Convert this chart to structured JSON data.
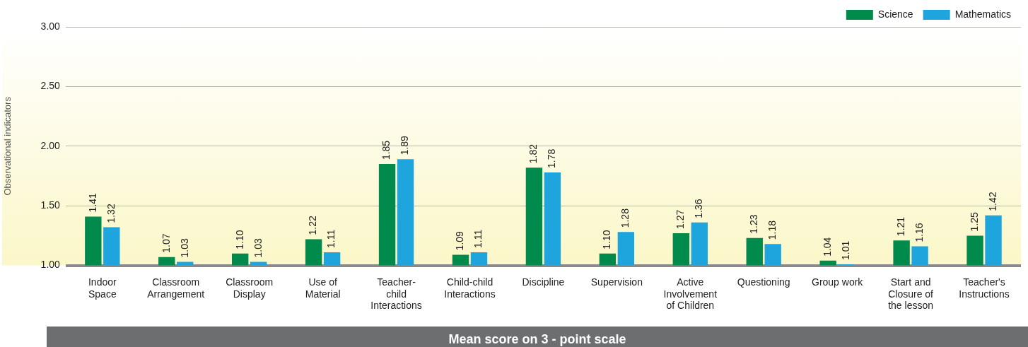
{
  "chart_data": {
    "type": "bar",
    "xlabel": "Mean score on 3 - point scale",
    "ylabel": "Observational indicators",
    "categories": [
      "Indoor Space",
      "Classroom Arrangement",
      "Classroom Display",
      "Use of Material",
      "Teacher-child Interactions",
      "Child-child Interactions",
      "Discipline",
      "Supervision",
      "Active Involvement of Children",
      "Questioning",
      "Group work",
      "Start and Closure of the lesson",
      "Teacher's Instructions"
    ],
    "series": [
      {
        "name": "Science",
        "color": "#008a4b",
        "values": [
          1.41,
          1.07,
          1.1,
          1.22,
          1.85,
          1.09,
          1.82,
          1.1,
          1.27,
          1.23,
          1.04,
          1.21,
          1.25
        ],
        "value_labels": [
          "1.41",
          "1.07",
          "1.10",
          "1.22",
          "1.85",
          "1.09",
          "1.82",
          "1.10",
          "1.27",
          "1.23",
          "1.04",
          "1.21",
          "1.25"
        ]
      },
      {
        "name": "Mathematics",
        "color": "#1ea5de",
        "values": [
          1.32,
          1.03,
          1.03,
          1.11,
          1.89,
          1.11,
          1.78,
          1.28,
          1.36,
          1.18,
          1.01,
          1.16,
          1.42
        ],
        "value_labels": [
          "1.32",
          "1.03",
          "1.03",
          "1.11",
          "1.89",
          "1.11",
          "1.78",
          "1.28",
          "1.36",
          "1.18",
          "1.01",
          "1.16",
          "1.42"
        ]
      }
    ],
    "ylim": [
      1,
      3
    ],
    "yticks": [
      {
        "value": 1,
        "label": "1.00"
      },
      {
        "value": 1.5,
        "label": "1.50"
      },
      {
        "value": 2,
        "label": "2.00"
      },
      {
        "value": 2.5,
        "label": "2.50"
      },
      {
        "value": 3,
        "label": "3.00"
      }
    ],
    "grid": "y",
    "legend": "top right"
  }
}
